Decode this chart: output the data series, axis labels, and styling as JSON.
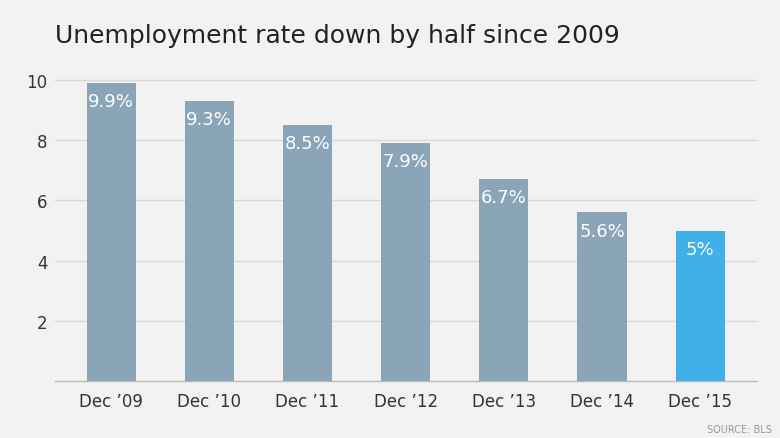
{
  "title": "Unemployment rate down by half since 2009",
  "categories": [
    "Dec ’09",
    "Dec ’10",
    "Dec ’11",
    "Dec ’12",
    "Dec ’13",
    "Dec ’14",
    "Dec ’15"
  ],
  "values": [
    9.9,
    9.3,
    8.5,
    7.9,
    6.7,
    5.6,
    5.0
  ],
  "labels": [
    "9.9%",
    "9.3%",
    "8.5%",
    "7.9%",
    "6.7%",
    "5.6%",
    "5%"
  ],
  "bar_colors": [
    "#8aa4b8",
    "#8aa4b8",
    "#8aa4b8",
    "#8aa4b8",
    "#8aa4b8",
    "#8aa4b8",
    "#40b0e8"
  ],
  "background_color": "#f2f2f2",
  "plot_bg_color": "#f2f2f2",
  "ylim": [
    0,
    10.8
  ],
  "yticks": [
    2,
    4,
    6,
    8,
    10
  ],
  "title_fontsize": 18,
  "label_fontsize": 13,
  "tick_fontsize": 12,
  "source_text": "SOURCE: BLS",
  "label_color": "#ffffff",
  "grid_color": "#d8d8d8",
  "axis_color": "#bbbbbb",
  "bar_width": 0.5
}
